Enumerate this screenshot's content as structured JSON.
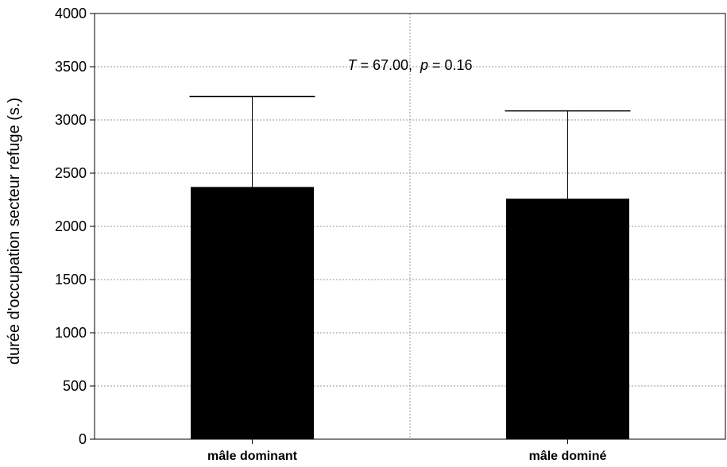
{
  "chart_data": {
    "type": "bar",
    "title": "",
    "xlabel": "",
    "ylabel": "durée d'occupation secteur refuge (s.)",
    "categories": [
      "mâle dominant",
      "mâle dominé"
    ],
    "values": [
      2370,
      2260
    ],
    "error_upper": [
      3220,
      3085
    ],
    "ylim": [
      0,
      4000
    ],
    "yticks": [
      0,
      500,
      1000,
      1500,
      2000,
      2500,
      3000,
      3500,
      4000
    ],
    "grid": true,
    "legend": "none",
    "bar_color": "#000000",
    "annotation": {
      "t_symbol": "T",
      "t_rest": " = 67.00,  ",
      "p_symbol": "p",
      "p_rest": " = 0.16"
    }
  }
}
